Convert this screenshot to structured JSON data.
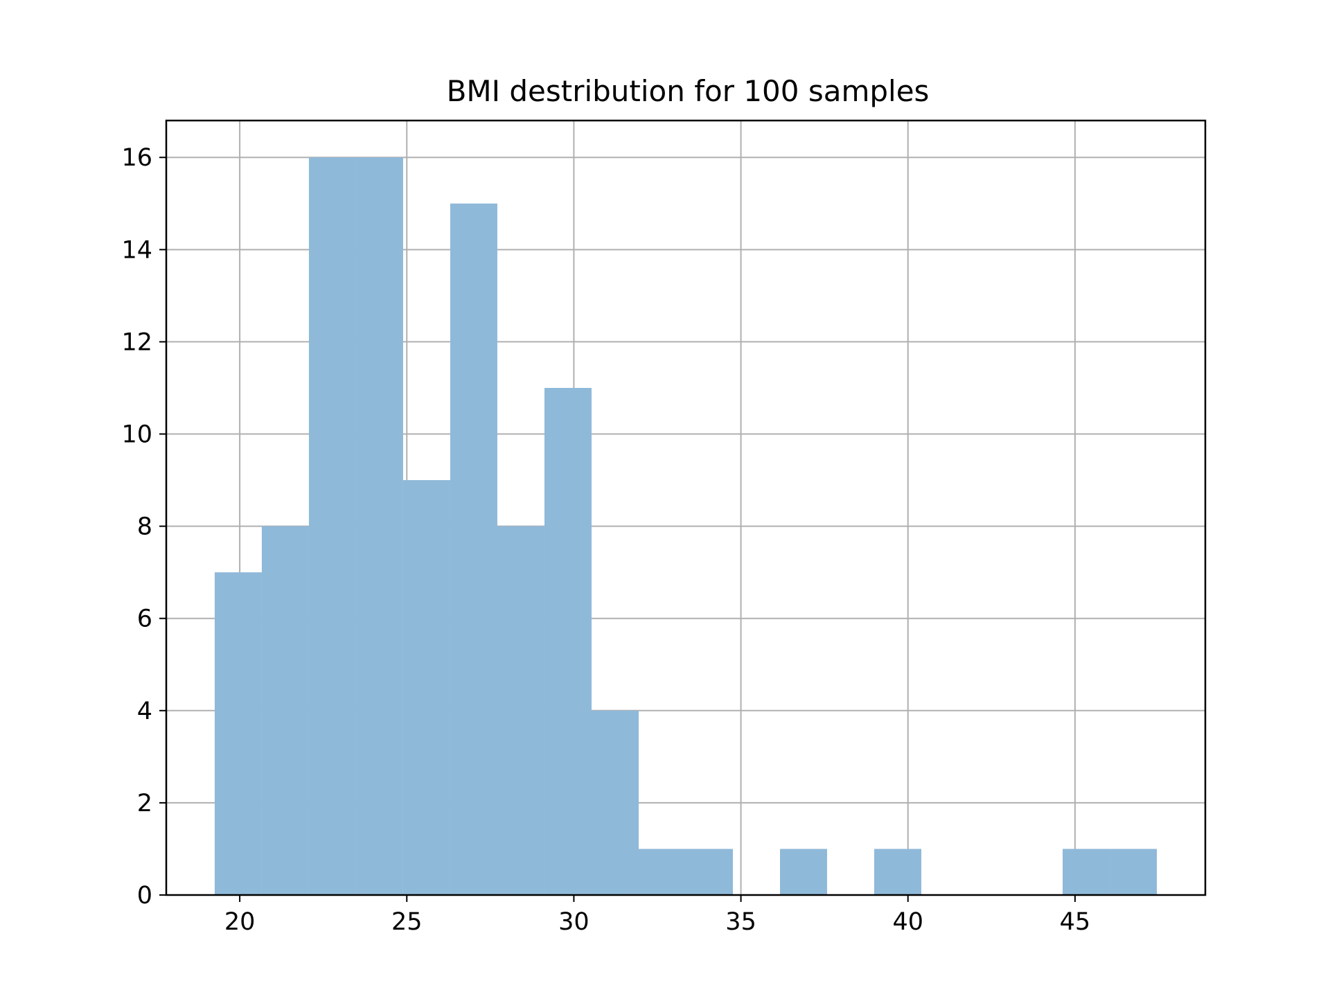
{
  "chart_data": {
    "type": "bar",
    "title": "BMI destribution for 100 samples",
    "xlabel": "",
    "ylabel": "",
    "xlim": [
      17.8,
      48.9
    ],
    "ylim": [
      0,
      16.8
    ],
    "xticks": [
      20,
      25,
      30,
      35,
      40,
      45
    ],
    "yticks": [
      0,
      2,
      4,
      6,
      8,
      10,
      12,
      14,
      16
    ],
    "grid": true,
    "bar_color": "#8fb9d9",
    "bins": [
      {
        "x0": 19.25,
        "x1": 20.66,
        "count": 7
      },
      {
        "x0": 20.66,
        "x1": 22.07,
        "count": 8
      },
      {
        "x0": 22.07,
        "x1": 23.48,
        "count": 16
      },
      {
        "x0": 23.48,
        "x1": 24.89,
        "count": 16
      },
      {
        "x0": 24.89,
        "x1": 26.3,
        "count": 9
      },
      {
        "x0": 26.3,
        "x1": 27.71,
        "count": 15
      },
      {
        "x0": 27.71,
        "x1": 29.12,
        "count": 8
      },
      {
        "x0": 29.12,
        "x1": 30.53,
        "count": 11
      },
      {
        "x0": 30.53,
        "x1": 31.94,
        "count": 4
      },
      {
        "x0": 31.94,
        "x1": 33.35,
        "count": 1
      },
      {
        "x0": 33.35,
        "x1": 34.76,
        "count": 1
      },
      {
        "x0": 34.76,
        "x1": 36.17,
        "count": 0
      },
      {
        "x0": 36.17,
        "x1": 37.58,
        "count": 1
      },
      {
        "x0": 37.58,
        "x1": 38.99,
        "count": 0
      },
      {
        "x0": 38.99,
        "x1": 40.4,
        "count": 1
      },
      {
        "x0": 40.4,
        "x1": 41.81,
        "count": 0
      },
      {
        "x0": 41.81,
        "x1": 43.22,
        "count": 0
      },
      {
        "x0": 43.22,
        "x1": 44.63,
        "count": 0
      },
      {
        "x0": 44.63,
        "x1": 46.04,
        "count": 1
      },
      {
        "x0": 46.04,
        "x1": 47.45,
        "count": 1
      }
    ]
  }
}
